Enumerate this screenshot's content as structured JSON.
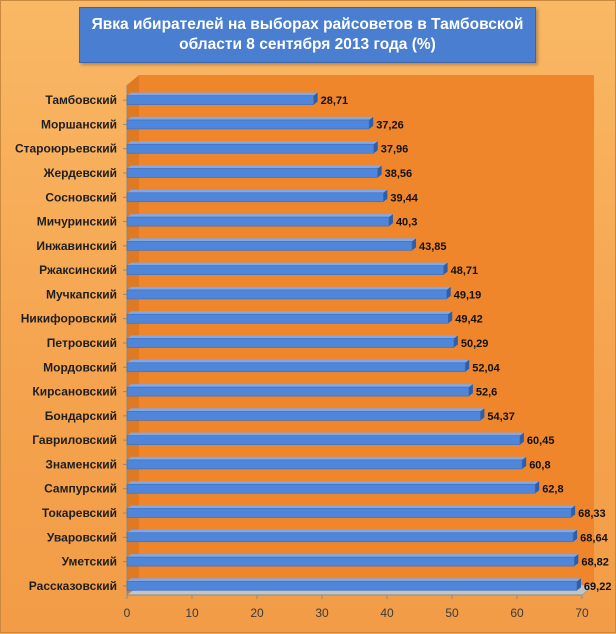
{
  "chart_data": {
    "type": "bar",
    "orientation": "horizontal",
    "title": "Явка ибирателей на выборах райсоветов в Тамбовской области 8 сентября 2013 года (%)",
    "categories": [
      "Тамбовский",
      "Моршанский",
      "Староюрьевский",
      "Жердевский",
      "Сосновский",
      "Мичуринский",
      "Инжавинский",
      "Ржаксинский",
      "Мучкапский",
      "Никифоровский",
      "Петровский",
      "Мордовский",
      "Кирсановский",
      "Бондарский",
      "Гавриловский",
      "Знаменский",
      "Сампурский",
      "Токаревский",
      "Уваровский",
      "Уметский",
      "Рассказовский"
    ],
    "values": [
      28.71,
      37.26,
      37.96,
      38.56,
      39.44,
      40.3,
      43.85,
      48.71,
      49.19,
      49.42,
      50.29,
      52.04,
      52.6,
      54.37,
      60.45,
      60.8,
      62.8,
      68.33,
      68.64,
      68.82,
      69.22
    ],
    "value_labels": [
      "28,71",
      "37,26",
      "37,96",
      "38,56",
      "39,44",
      "40,3",
      "43,85",
      "48,71",
      "49,19",
      "49,42",
      "50,29",
      "52,04",
      "52,6",
      "54,37",
      "60,45",
      "60,8",
      "62,8",
      "68,33",
      "68,64",
      "68,82",
      "69,22"
    ],
    "xlim": [
      0,
      70
    ],
    "x_ticks": [
      "0",
      "10",
      "20",
      "30",
      "40",
      "50",
      "60",
      "70"
    ],
    "grid": false,
    "legend": "none",
    "colors": {
      "bar": "#4f86d9",
      "bar_top": "#7fa8e8",
      "bar_side": "#2f5ea8",
      "plot_bg": "#f0862c",
      "floor": "#c4c4c4",
      "title_bg": "#4a7ed0"
    }
  }
}
